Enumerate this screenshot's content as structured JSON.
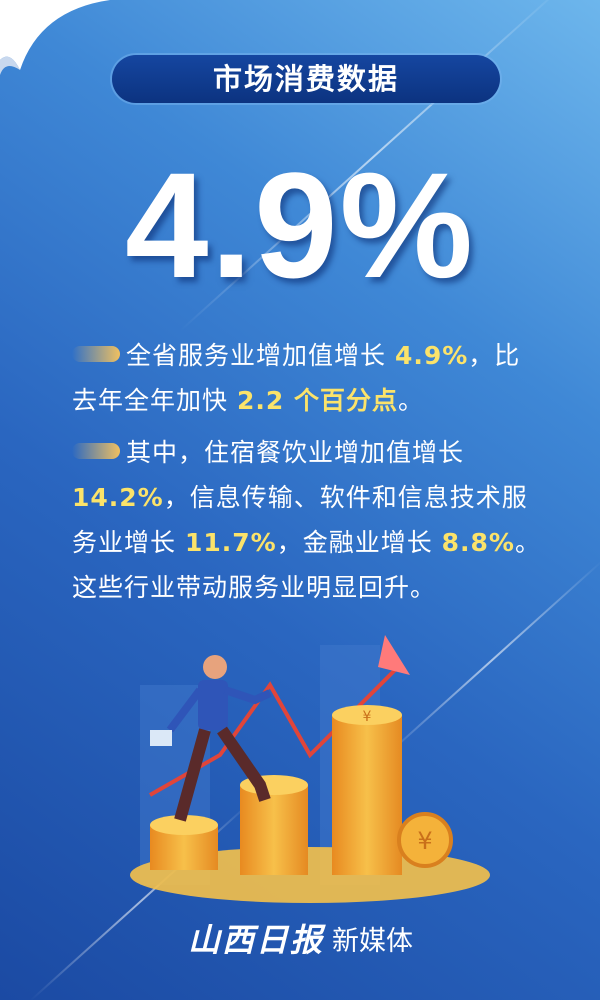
{
  "title": "市场消费数据",
  "headline_value": "4.9%",
  "paragraph1": {
    "t1": "全省服务业增加值增长 ",
    "v1": "4.9%",
    "t2": "，比去年全年加快 ",
    "v2": "2.2 个百分点",
    "t3": "。"
  },
  "paragraph2": {
    "t1": "其中，住宿餐饮业增加值增长 ",
    "v1": "14.2%",
    "t2": "，信息传输、软件和信息技术服务业增长 ",
    "v2": "11.7%",
    "t3": "，金融业增长 ",
    "v3": "8.8%",
    "t4": "。这些行业带动服务业明显回升。"
  },
  "logo": {
    "script": "山西日报",
    "text": "新媒体"
  },
  "colors": {
    "highlight": "#fbe36a",
    "pill": "#0c3380",
    "background": "#2a66c0",
    "coin": "#f2a83a"
  },
  "illustration": {
    "icons": [
      "person-climbing-icon",
      "coin-stack-icon",
      "rising-arrow-icon",
      "yuan-coin-icon"
    ]
  }
}
